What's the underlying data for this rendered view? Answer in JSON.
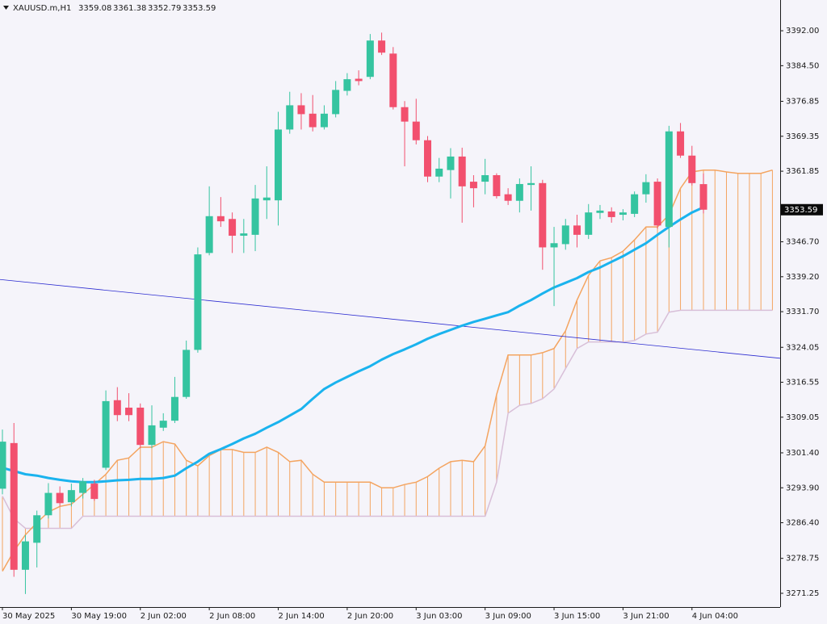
{
  "chart_data": {
    "type": "candlestick",
    "title": "XAUUSD.m,H1",
    "categories": [
      "30 May 2025",
      null,
      null,
      null,
      null,
      null,
      "30 May 19:00",
      null,
      null,
      null,
      null,
      null,
      "2 Jun 02:00",
      null,
      null,
      null,
      null,
      null,
      "2 Jun 08:00",
      null,
      null,
      null,
      null,
      null,
      "2 Jun 14:00",
      null,
      null,
      null,
      null,
      null,
      "2 Jun 20:00",
      null,
      null,
      null,
      null,
      null,
      "3 Jun 03:00",
      null,
      null,
      null,
      null,
      null,
      "3 Jun 09:00",
      null,
      null,
      null,
      null,
      null,
      "3 Jun 15:00",
      null,
      null,
      null,
      null,
      null,
      "3 Jun 21:00",
      null,
      null,
      null,
      null,
      null,
      "4 Jun 04:00",
      null,
      null,
      null,
      null,
      null,
      null,
      null
    ],
    "ohlc": {
      "up_color": "#35c4a0",
      "down_color": "#f2506e",
      "open": [
        3293.7,
        3303.5,
        3276.3,
        3282.1,
        3288.0,
        3292.8,
        3290.8,
        3292.8,
        3294.8,
        3298.2,
        3312.7,
        3311.1,
        3311.1,
        3303.1,
        3306.8,
        3308.3,
        3313.4,
        3323.5,
        3344.3,
        3352.2,
        3351.6,
        3348.0,
        3348.2,
        3355.6,
        3355.6,
        3370.8,
        3376.0,
        3374.2,
        3371.3,
        3374.1,
        3379.1,
        3381.7,
        3382.1,
        3389.9,
        3387.1,
        3375.6,
        3372.5,
        3368.5,
        3360.7,
        3362.1,
        3365.0,
        3359.6,
        3359.6,
        3361.0,
        3356.9,
        3355.5,
        3358.9,
        3359.3,
        3345.5,
        3346.2,
        3350.2,
        3348.2,
        3352.9,
        3353.2,
        3352.5,
        3352.7,
        3356.9,
        3359.6,
        3349.9,
        3370.4,
        3365.2,
        3359.08,
        null,
        null,
        null,
        null,
        null,
        null
      ],
      "high": [
        3306.4,
        3307.8,
        3283.8,
        3289.0,
        3294.9,
        3294.2,
        3294.8,
        3296.0,
        3295.6,
        3314.8,
        3315.5,
        3314.2,
        3312.0,
        3311.6,
        3309.9,
        3317.7,
        3325.5,
        3345.5,
        3358.6,
        3356.3,
        3353.0,
        3351.6,
        3358.9,
        3362.9,
        3374.6,
        3378.9,
        3378.6,
        3378.2,
        3376.0,
        3381.2,
        3382.9,
        3383.5,
        3391.3,
        3391.6,
        3388.5,
        3376.9,
        3377.4,
        3369.4,
        3364.7,
        3366.8,
        3366.9,
        3361.0,
        3364.5,
        3361.4,
        3358.2,
        3360.3,
        3362.9,
        3360.0,
        3349.9,
        3351.6,
        3352.5,
        3354.8,
        3354.6,
        3354.1,
        3353.7,
        3357.5,
        3361.2,
        3360.3,
        3371.6,
        3372.2,
        3367.3,
        3361.38,
        null,
        null,
        null,
        null,
        null,
        null
      ],
      "low": [
        3292.5,
        3274.8,
        3271.1,
        3276.8,
        3287.3,
        3289.9,
        3289.9,
        3291.6,
        3291.1,
        3297.7,
        3308.2,
        3308.2,
        3302.4,
        3302.4,
        3306.1,
        3307.8,
        3313.0,
        3322.9,
        3343.8,
        3349.9,
        3344.3,
        3344.3,
        3344.7,
        3351.6,
        3350.2,
        3369.9,
        3370.8,
        3370.4,
        3370.8,
        3373.4,
        3378.1,
        3380.3,
        3381.6,
        3386.8,
        3375.1,
        3362.9,
        3367.6,
        3359.5,
        3359.5,
        3356.0,
        3350.8,
        3354.1,
        3356.9,
        3356.0,
        3354.6,
        3353.0,
        3353.4,
        3340.7,
        3332.9,
        3345.0,
        3345.5,
        3347.3,
        3351.6,
        3350.8,
        3351.3,
        3352.0,
        3355.1,
        3349.5,
        3345.5,
        3364.7,
        3358.8,
        3352.79,
        null,
        null,
        null,
        null,
        null,
        null
      ],
      "close": [
        3303.8,
        3276.3,
        3282.4,
        3288.0,
        3292.8,
        3290.6,
        3293.4,
        3295.3,
        3291.5,
        3312.5,
        3309.5,
        3309.5,
        3303.1,
        3307.3,
        3308.3,
        3313.4,
        3323.5,
        3344.0,
        3352.2,
        3351.1,
        3348.0,
        3348.5,
        3356.0,
        3356.2,
        3370.8,
        3376.0,
        3374.1,
        3371.3,
        3374.2,
        3379.3,
        3381.6,
        3381.2,
        3389.9,
        3387.3,
        3375.6,
        3372.5,
        3368.5,
        3360.7,
        3362.4,
        3365.0,
        3358.6,
        3358.2,
        3361.0,
        3356.5,
        3355.5,
        3359.1,
        3359.3,
        3345.5,
        3346.4,
        3350.2,
        3348.2,
        3353.0,
        3353.4,
        3352.0,
        3353.0,
        3356.9,
        3359.5,
        3350.2,
        3370.4,
        3365.2,
        3359.3,
        3353.59,
        null,
        null,
        null,
        null,
        null,
        null
      ]
    },
    "moving_average": {
      "color": "#1ab3ee",
      "values": [
        3298.2,
        3297.5,
        3296.8,
        3296.5,
        3296.0,
        3295.6,
        3295.3,
        3295.1,
        3295.1,
        3295.3,
        3295.5,
        3295.6,
        3295.8,
        3295.8,
        3296.0,
        3296.5,
        3298.1,
        3299.5,
        3301.2,
        3302.2,
        3303.3,
        3304.5,
        3305.5,
        3306.8,
        3308.0,
        3309.4,
        3310.8,
        3313.0,
        3315.1,
        3316.5,
        3317.7,
        3318.9,
        3320.0,
        3321.4,
        3322.6,
        3323.6,
        3324.7,
        3325.9,
        3326.9,
        3327.8,
        3328.7,
        3329.5,
        3330.2,
        3330.9,
        3331.6,
        3333.0,
        3334.2,
        3335.6,
        3336.9,
        3337.9,
        3338.9,
        3340.2,
        3341.2,
        3342.4,
        3343.6,
        3345.0,
        3346.4,
        3348.2,
        3349.9,
        3351.5,
        3353.0,
        3354.1,
        null,
        null,
        null,
        null,
        null,
        null
      ]
    },
    "cloud": {
      "hatch_color": "#f4a460",
      "span_a": {
        "color": "#f4a460",
        "values": [
          3276.0,
          3280.3,
          3283.8,
          3286.4,
          3288.7,
          3289.9,
          3290.4,
          3292.5,
          3294.6,
          3296.8,
          3299.8,
          3300.3,
          3302.6,
          3302.6,
          3303.8,
          3303.3,
          3299.8,
          3298.6,
          3300.8,
          3302.1,
          3302.1,
          3301.5,
          3301.5,
          3302.6,
          3301.5,
          3299.5,
          3299.8,
          3296.8,
          3295.1,
          3295.1,
          3295.1,
          3295.1,
          3295.1,
          3293.9,
          3293.9,
          3294.6,
          3295.1,
          3296.3,
          3298.1,
          3299.5,
          3299.8,
          3299.5,
          3302.9,
          3313.9,
          3322.4,
          3322.4,
          3322.4,
          3322.9,
          3323.8,
          3327.6,
          3334.2,
          3339.5,
          3342.6,
          3343.3,
          3344.7,
          3347.1,
          3349.9,
          3349.9,
          3352.5,
          3358.2,
          3361.7,
          3362.1,
          3362.1,
          3361.7,
          3361.4,
          3361.4,
          3361.4,
          3362.1
        ]
      },
      "span_b": {
        "color": "#d8bfd8",
        "values": [
          3292.1,
          3287.3,
          3285.2,
          3285.2,
          3285.2,
          3285.2,
          3285.2,
          3287.8,
          3287.8,
          3287.8,
          3287.8,
          3287.8,
          3287.8,
          3287.8,
          3287.8,
          3287.8,
          3287.8,
          3287.8,
          3287.8,
          3287.8,
          3287.8,
          3287.8,
          3287.8,
          3287.8,
          3287.8,
          3287.8,
          3287.8,
          3287.8,
          3287.8,
          3287.8,
          3287.8,
          3287.8,
          3287.8,
          3287.8,
          3287.8,
          3287.8,
          3287.8,
          3287.8,
          3287.8,
          3287.8,
          3287.8,
          3287.8,
          3287.8,
          3295.1,
          3309.9,
          3311.6,
          3312.0,
          3313.0,
          3315.1,
          3319.5,
          3323.8,
          3325.2,
          3325.2,
          3325.2,
          3325.2,
          3325.5,
          3326.9,
          3327.3,
          3331.6,
          3332.0,
          3332.0,
          3332.0,
          3332.0,
          3332.0,
          3332.0,
          3332.0,
          3332.0,
          3332.0
        ]
      }
    },
    "trendline": {
      "color": "#2a2ad0",
      "start": 3338.6,
      "end": 3321.7
    },
    "ylim": [
      3268.3,
      3398.6
    ],
    "yticks": [
      {
        "value": 3392.0,
        "label": "3392.00"
      },
      {
        "value": 3384.5,
        "label": "3384.50"
      },
      {
        "value": 3376.85,
        "label": "3376.85"
      },
      {
        "value": 3369.35,
        "label": "3369.35"
      },
      {
        "value": 3361.85,
        "label": "3361.85"
      },
      {
        "value": 3346.7,
        "label": "3346.70"
      },
      {
        "value": 3339.2,
        "label": "3339.20"
      },
      {
        "value": 3331.7,
        "label": "3331.70"
      },
      {
        "value": 3324.05,
        "label": "3324.05"
      },
      {
        "value": 3316.55,
        "label": "3316.55"
      },
      {
        "value": 3309.05,
        "label": "3309.05"
      },
      {
        "value": 3301.4,
        "label": "3301.40"
      },
      {
        "value": 3293.9,
        "label": "3293.90"
      },
      {
        "value": 3286.4,
        "label": "3286.40"
      },
      {
        "value": 3278.75,
        "label": "3278.75"
      },
      {
        "value": 3271.25,
        "label": "3271.25"
      }
    ]
  }
}
